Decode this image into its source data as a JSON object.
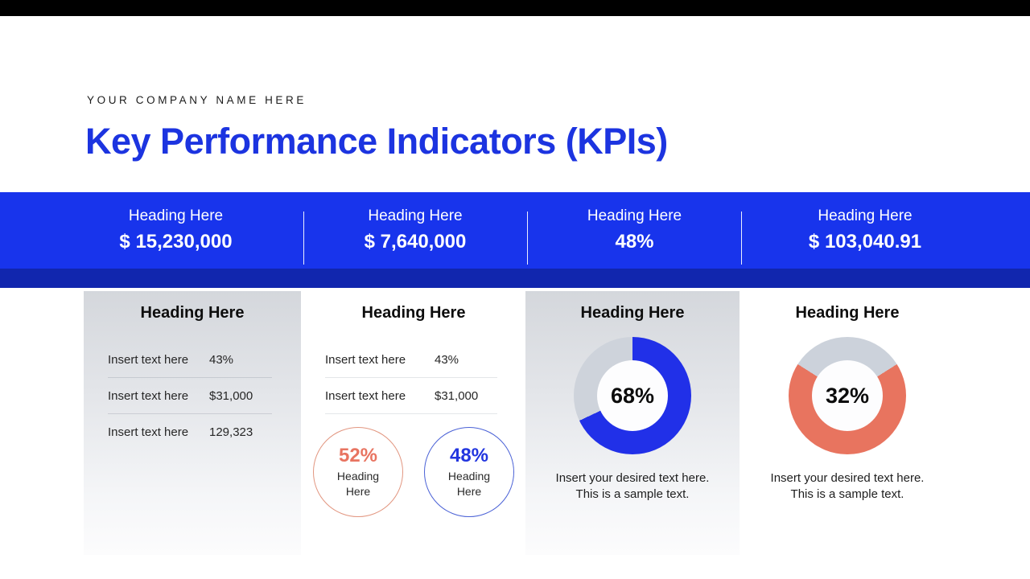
{
  "company_name": "YOUR COMPANY NAME HERE",
  "title": "Key Performance Indicators (KPIs)",
  "colors": {
    "top_bar": "#000000",
    "banner_blue": "#1834EC",
    "navy_strip": "#1126AE",
    "title_blue": "#1C34E0",
    "chart_blue": "#2130E8",
    "chart_coral": "#E8745F",
    "donut_gray": "#CED3DB"
  },
  "banner": {
    "items": [
      {
        "heading": "Heading Here",
        "value": "$ 15,230,000"
      },
      {
        "heading": "Heading Here",
        "value": "$ 7,640,000"
      },
      {
        "heading": "Heading Here",
        "value": "48%"
      },
      {
        "heading": "Heading Here",
        "value": "$ 103,040.91"
      }
    ]
  },
  "cards": [
    {
      "heading": "Heading Here",
      "rows": [
        {
          "label": "Insert text here",
          "value": "43%"
        },
        {
          "label": "Insert text here",
          "value": "$31,000"
        },
        {
          "label": "Insert text here",
          "value": "129,323"
        }
      ]
    },
    {
      "heading": "Heading Here",
      "rows": [
        {
          "label": "Insert text here",
          "value": "43%"
        },
        {
          "label": "Insert text here",
          "value": "$31,000"
        }
      ],
      "circles": [
        {
          "percent": "52%",
          "label": "Heading Here",
          "color": "#E87461",
          "border": "#E29680"
        },
        {
          "percent": "48%",
          "label": "Heading Here",
          "color": "#2235DF",
          "border": "#4A61D6"
        }
      ]
    },
    {
      "heading": "Heading Here",
      "donut": {
        "percent": 68,
        "label": "68%",
        "seg_color": "#2130E8",
        "rest_color": "#CED3DB",
        "anchor": "start-top"
      },
      "caption": "Insert your desired text here. This is a sample text."
    },
    {
      "heading": "Heading Here",
      "donut": {
        "percent": 32,
        "label": "32%",
        "seg_color": "#CCD2DB",
        "rest_color": "#E8745F",
        "anchor": "center-top"
      },
      "caption": "Insert your desired text here. This is a sample text."
    }
  ],
  "chart_data": [
    {
      "type": "pie",
      "subtype": "donut",
      "title": "Heading Here",
      "center_label": "68%",
      "slices": [
        {
          "label": "value",
          "value": 68,
          "color": "#2130E8"
        },
        {
          "label": "remainder",
          "value": 32,
          "color": "#CED3DB"
        }
      ]
    },
    {
      "type": "pie",
      "subtype": "donut",
      "title": "Heading Here",
      "center_label": "32%",
      "slices": [
        {
          "label": "remainder",
          "value": 32,
          "color": "#CCD2DB"
        },
        {
          "label": "value",
          "value": 68,
          "color": "#E8745F"
        }
      ]
    }
  ]
}
